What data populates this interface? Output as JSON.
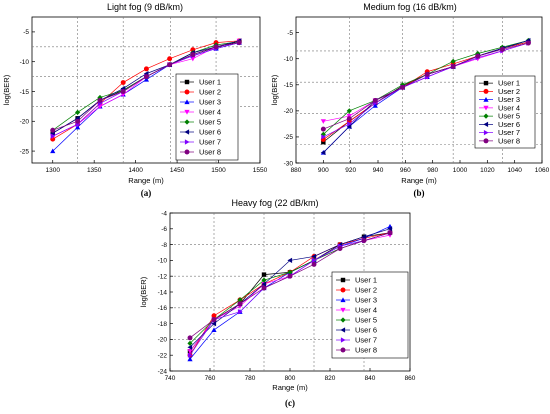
{
  "colors": {
    "User 1": "#000000",
    "User 2": "#ff0000",
    "User 3": "#0000ff",
    "User 4": "#ff00ff",
    "User 5": "#008000",
    "User 6": "#000080",
    "User 7": "#8000ff",
    "User 8": "#800080"
  },
  "markers": {
    "User 1": "square",
    "User 2": "circle",
    "User 3": "triangle-up",
    "User 4": "triangle-down",
    "User 5": "diamond",
    "User 6": "triangle-left",
    "User 7": "triangle-right",
    "User 8": "circle"
  },
  "chart_data": [
    {
      "type": "line",
      "title": "Light fog (9 dB/km)",
      "caption": "(a)",
      "xlabel": "Range (m)",
      "ylabel": "log(BER)",
      "xlim": [
        1275,
        1550
      ],
      "ylim": [
        -27,
        -2.5
      ],
      "xticks": [
        1300,
        1350,
        1400,
        1450,
        1500,
        1550
      ],
      "yticks": [
        -5,
        -10,
        -15,
        -20,
        -25
      ],
      "dashed_x": [
        1330,
        1385,
        1442,
        1497
      ],
      "dashed_y": [
        -7.5,
        -12.5,
        -17.5
      ],
      "legend_position": "center-right",
      "x": [
        1300,
        1330,
        1357,
        1385,
        1413,
        1441,
        1469,
        1497,
        1525
      ],
      "series": [
        {
          "name": "User 1",
          "values": [
            -22,
            -19.5,
            -16.5,
            -14.8,
            -12.5,
            -10.5,
            -8.8,
            -7.6,
            -6.6
          ]
        },
        {
          "name": "User 2",
          "values": [
            -23,
            -20.5,
            -17,
            -13.5,
            -11.2,
            -9.5,
            -8,
            -6.8,
            -6.5
          ]
        },
        {
          "name": "User 3",
          "values": [
            -25,
            -21,
            -17.5,
            -15.5,
            -13,
            -10.5,
            -9,
            -7.8,
            -6.8
          ]
        },
        {
          "name": "User 4",
          "values": [
            -22.5,
            -20.5,
            -17.5,
            -15.5,
            -12.5,
            -10.5,
            -9.5,
            -7.5,
            -6.5
          ]
        },
        {
          "name": "User 5",
          "values": [
            -21.5,
            -18.5,
            -16,
            -14.8,
            -12.5,
            -10.5,
            -8.5,
            -7.2,
            -6.6
          ]
        },
        {
          "name": "User 6",
          "values": [
            -22,
            -19.5,
            -16.5,
            -14.5,
            -12,
            -10.5,
            -8.5,
            -7.5,
            -6.5
          ]
        },
        {
          "name": "User 7",
          "values": [
            -22.5,
            -20.5,
            -17,
            -15,
            -12.5,
            -10.5,
            -9,
            -7.8,
            -6.8
          ]
        },
        {
          "name": "User 8",
          "values": [
            -21.5,
            -20,
            -16.5,
            -15,
            -12.5,
            -10.5,
            -8.8,
            -7.5,
            -6.8
          ]
        }
      ]
    },
    {
      "type": "line",
      "title": "Medium fog (16 dB/km)",
      "caption": "(b)",
      "xlabel": "Range (m)",
      "ylabel": "log(BER)",
      "xlim": [
        880,
        1060
      ],
      "ylim": [
        -30,
        -2
      ],
      "xticks": [
        880,
        900,
        920,
        940,
        960,
        980,
        1000,
        1020,
        1040,
        1060
      ],
      "yticks": [
        -5,
        -10,
        -15,
        -20,
        -25,
        -30
      ],
      "dashed_x": [
        919,
        958,
        995,
        1031
      ],
      "dashed_y": [
        -8.5,
        -14.5,
        -20.5,
        -26.5
      ],
      "legend_position": "right",
      "x": [
        900,
        919,
        938,
        958,
        976,
        995,
        1013,
        1031,
        1050
      ],
      "series": [
        {
          "name": "User 1",
          "values": [
            -26,
            -22,
            -18.5,
            -15.2,
            -13,
            -11.5,
            -9.5,
            -8,
            -6.8
          ]
        },
        {
          "name": "User 2",
          "values": [
            -25.5,
            -22,
            -18.5,
            -15.5,
            -12.5,
            -11,
            -9.5,
            -8,
            -6.8
          ]
        },
        {
          "name": "User 3",
          "values": [
            -28,
            -23,
            -19,
            -15.5,
            -13.5,
            -11.5,
            -9.5,
            -8,
            -6.5
          ]
        },
        {
          "name": "User 4",
          "values": [
            -22,
            -21,
            -18,
            -15.5,
            -13.5,
            -11.5,
            -10,
            -8.5,
            -7
          ]
        },
        {
          "name": "User 5",
          "values": [
            -24.5,
            -20,
            -18,
            -15,
            -13,
            -10.5,
            -9,
            -7.8,
            -6.5
          ]
        },
        {
          "name": "User 6",
          "values": [
            -28,
            -23,
            -18,
            -15.5,
            -13,
            -11.5,
            -9.5,
            -8,
            -6.5
          ]
        },
        {
          "name": "User 7",
          "values": [
            -25,
            -22.5,
            -18.5,
            -15.5,
            -13.5,
            -11.5,
            -9.8,
            -8.5,
            -7
          ]
        },
        {
          "name": "User 8",
          "values": [
            -23.5,
            -21.5,
            -18,
            -15.5,
            -13,
            -11.5,
            -9.5,
            -8.2,
            -7
          ]
        }
      ]
    },
    {
      "type": "line",
      "title": "Heavy fog (22 dB/km)",
      "caption": "(c)",
      "xlabel": "Range (m)",
      "ylabel": "log(BER)",
      "xlim": [
        740,
        860
      ],
      "ylim": [
        -24,
        -4
      ],
      "xticks": [
        740,
        760,
        780,
        800,
        820,
        840,
        860
      ],
      "yticks": [
        -4,
        -6,
        -8,
        -10,
        -12,
        -14,
        -16,
        -18,
        -20,
        -22,
        -24
      ],
      "dashed_x": [
        762,
        787,
        812,
        837
      ],
      "dashed_y": [
        -8,
        -12,
        -16,
        -20
      ],
      "legend_position": "right",
      "x": [
        750,
        762,
        775,
        787,
        800,
        812,
        825,
        837,
        850
      ],
      "series": [
        {
          "name": "User 1",
          "values": [
            -21.5,
            -17.5,
            -15.5,
            -11.8,
            -11.5,
            -10,
            -8,
            -7,
            -6.5
          ]
        },
        {
          "name": "User 2",
          "values": [
            -22,
            -17,
            -15,
            -13,
            -11.5,
            -9.5,
            -8,
            -7.2,
            -6.5
          ]
        },
        {
          "name": "User 3",
          "values": [
            -22.5,
            -18.8,
            -16.5,
            -13.5,
            -11.5,
            -10,
            -8.2,
            -7.2,
            -5.7
          ]
        },
        {
          "name": "User 4",
          "values": [
            -21.5,
            -17.5,
            -15.8,
            -13,
            -12,
            -10,
            -8.5,
            -7.5,
            -6.8
          ]
        },
        {
          "name": "User 5",
          "values": [
            -20.5,
            -17.5,
            -15,
            -12.5,
            -11.5,
            -10,
            -8.5,
            -7.5,
            -6.5
          ]
        },
        {
          "name": "User 6",
          "values": [
            -21,
            -18,
            -15.5,
            -13,
            -10,
            -9.5,
            -8,
            -7,
            -6
          ]
        },
        {
          "name": "User 7",
          "values": [
            -22,
            -17.5,
            -16.5,
            -13.5,
            -12,
            -10,
            -8.2,
            -7.5,
            -6.5
          ]
        },
        {
          "name": "User 8",
          "values": [
            -19.8,
            -17.5,
            -15.5,
            -13.5,
            -12,
            -10.5,
            -8.5,
            -7.5,
            -6.5
          ]
        }
      ]
    }
  ]
}
